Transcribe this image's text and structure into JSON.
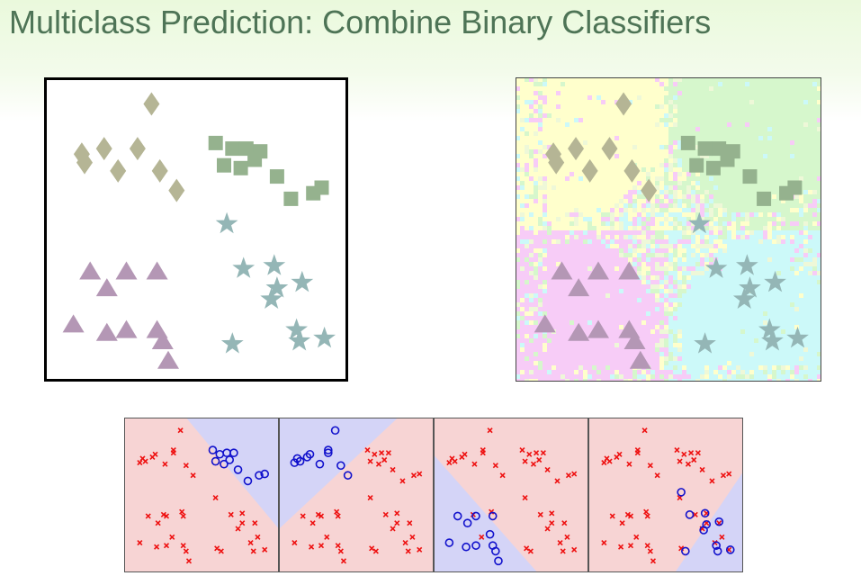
{
  "slide": {
    "title": "Multiclass Prediction: Combine Binary Classifiers"
  },
  "colors": {
    "title": "#4e7456",
    "diamond": "#b5b595",
    "square": "#95b28e",
    "triangle": "#b497b5",
    "star": "#94b6b6",
    "region_diamond": "#ffffcc",
    "region_square": "#d6f7cc",
    "region_triangle": "#f7ccf7",
    "region_star": "#ccf9f9",
    "positive_region": "#d4d4f7",
    "negative_region": "#f7d4d4",
    "cross": "#ee1111",
    "circle": "#1111cc"
  },
  "marker_legend": {
    "diamond": "diamond-class",
    "square": "square-class",
    "triangle": "triangle-class",
    "star": "star-class",
    "cross": "negative",
    "circle": "positive"
  },
  "points": {
    "diamond": [
      [
        0.34,
        0.95
      ],
      [
        0.09,
        0.77
      ],
      [
        0.17,
        0.79
      ],
      [
        0.29,
        0.79
      ],
      [
        0.22,
        0.71
      ],
      [
        0.37,
        0.71
      ],
      [
        0.43,
        0.64
      ],
      [
        0.1,
        0.74
      ]
    ],
    "square": [
      [
        0.57,
        0.81
      ],
      [
        0.63,
        0.79
      ],
      [
        0.68,
        0.79
      ],
      [
        0.73,
        0.78
      ],
      [
        0.6,
        0.73
      ],
      [
        0.66,
        0.72
      ],
      [
        0.71,
        0.75
      ],
      [
        0.79,
        0.69
      ],
      [
        0.84,
        0.61
      ],
      [
        0.92,
        0.63
      ],
      [
        0.95,
        0.65
      ]
    ],
    "triangle": [
      [
        0.12,
        0.35
      ],
      [
        0.25,
        0.35
      ],
      [
        0.36,
        0.35
      ],
      [
        0.18,
        0.29
      ],
      [
        0.06,
        0.16
      ],
      [
        0.18,
        0.13
      ],
      [
        0.25,
        0.14
      ],
      [
        0.36,
        0.14
      ],
      [
        0.38,
        0.1
      ],
      [
        0.4,
        0.03
      ]
    ],
    "star": [
      [
        0.61,
        0.52
      ],
      [
        0.67,
        0.36
      ],
      [
        0.78,
        0.37
      ],
      [
        0.79,
        0.29
      ],
      [
        0.77,
        0.25
      ],
      [
        0.88,
        0.31
      ],
      [
        0.86,
        0.14
      ],
      [
        0.87,
        0.1
      ],
      [
        0.96,
        0.11
      ],
      [
        0.63,
        0.09
      ]
    ]
  },
  "mini_plots": {
    "cross_points": [
      [
        0.35,
        0.96
      ],
      [
        0.3,
        0.82
      ],
      [
        0.3,
        0.8
      ],
      [
        0.17,
        0.79
      ],
      [
        0.15,
        0.77
      ],
      [
        0.08,
        0.76
      ],
      [
        0.1,
        0.74
      ],
      [
        0.06,
        0.73
      ],
      [
        0.24,
        0.72
      ],
      [
        0.39,
        0.71
      ],
      [
        0.44,
        0.64
      ],
      [
        0.6,
        0.48
      ],
      [
        0.36,
        0.38
      ],
      [
        0.12,
        0.35
      ],
      [
        0.25,
        0.35
      ],
      [
        0.37,
        0.35
      ],
      [
        0.19,
        0.3
      ],
      [
        0.23,
        0.36
      ],
      [
        0.71,
        0.36
      ],
      [
        0.79,
        0.37
      ],
      [
        0.79,
        0.3
      ],
      [
        0.76,
        0.26
      ],
      [
        0.88,
        0.3
      ],
      [
        0.06,
        0.16
      ],
      [
        0.18,
        0.13
      ],
      [
        0.25,
        0.14
      ],
      [
        0.37,
        0.14
      ],
      [
        0.39,
        0.1
      ],
      [
        0.41,
        0.03
      ],
      [
        0.61,
        0.12
      ],
      [
        0.85,
        0.16
      ],
      [
        0.87,
        0.1
      ],
      [
        0.95,
        0.11
      ],
      [
        0.64,
        0.1
      ],
      [
        0.29,
        0.2
      ],
      [
        0.9,
        0.2
      ]
    ],
    "circle_points": [
      [
        0.58,
        0.82
      ],
      [
        0.63,
        0.79
      ],
      [
        0.68,
        0.8
      ],
      [
        0.73,
        0.8
      ],
      [
        0.6,
        0.74
      ],
      [
        0.66,
        0.72
      ],
      [
        0.7,
        0.75
      ],
      [
        0.76,
        0.68
      ],
      [
        0.83,
        0.6
      ],
      [
        0.91,
        0.64
      ],
      [
        0.95,
        0.65
      ]
    ],
    "plots": [
      {
        "positive_region": [
          [
            0.4,
            1
          ],
          [
            1,
            1
          ],
          [
            1,
            0.28
          ]
        ],
        "negatives": "all-except",
        "positives": [
          [
            0.58,
            0.82
          ],
          [
            0.63,
            0.79
          ],
          [
            0.68,
            0.8
          ],
          [
            0.73,
            0.8
          ],
          [
            0.6,
            0.74
          ],
          [
            0.66,
            0.72
          ],
          [
            0.7,
            0.75
          ],
          [
            0.76,
            0.68
          ],
          [
            0.83,
            0.6
          ],
          [
            0.91,
            0.64
          ],
          [
            0.95,
            0.65
          ]
        ]
      },
      {
        "positive_region": [
          [
            0,
            1
          ],
          [
            0.77,
            1
          ],
          [
            0,
            0.28
          ]
        ],
        "positives": [
          [
            0.35,
            0.96
          ],
          [
            0.3,
            0.82
          ],
          [
            0.3,
            0.8
          ],
          [
            0.17,
            0.79
          ],
          [
            0.15,
            0.77
          ],
          [
            0.08,
            0.76
          ],
          [
            0.1,
            0.74
          ],
          [
            0.06,
            0.73
          ],
          [
            0.24,
            0.72
          ],
          [
            0.39,
            0.71
          ],
          [
            0.44,
            0.64
          ]
        ]
      },
      {
        "positive_region": [
          [
            0,
            0.76
          ],
          [
            0,
            0
          ],
          [
            0.67,
            0
          ]
        ],
        "positives": [
          [
            0.12,
            0.35
          ],
          [
            0.25,
            0.35
          ],
          [
            0.37,
            0.35
          ],
          [
            0.19,
            0.3
          ],
          [
            0.06,
            0.16
          ],
          [
            0.18,
            0.13
          ],
          [
            0.25,
            0.14
          ],
          [
            0.37,
            0.14
          ],
          [
            0.39,
            0.1
          ],
          [
            0.41,
            0.03
          ],
          [
            0.35,
            0.22
          ]
        ]
      },
      {
        "positive_region": [
          [
            1,
            0.65
          ],
          [
            1,
            0
          ],
          [
            0.56,
            0
          ]
        ],
        "positives": [
          [
            0.61,
            0.52
          ],
          [
            0.67,
            0.36
          ],
          [
            0.78,
            0.37
          ],
          [
            0.79,
            0.29
          ],
          [
            0.77,
            0.25
          ],
          [
            0.88,
            0.31
          ],
          [
            0.86,
            0.14
          ],
          [
            0.87,
            0.1
          ],
          [
            0.96,
            0.11
          ],
          [
            0.64,
            0.1
          ]
        ]
      }
    ]
  }
}
